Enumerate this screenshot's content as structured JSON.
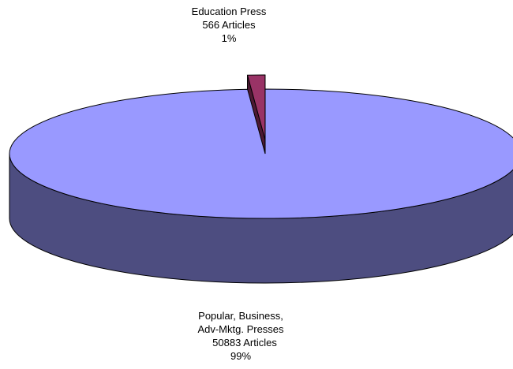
{
  "chart_data": {
    "type": "pie",
    "style": "3d-exploded",
    "slices": [
      {
        "id": "popular",
        "label_lines": [
          "Popular, Business,",
          "Adv-Mktg. Presses"
        ],
        "count_text": "50883 Articles",
        "percent_text": "99%",
        "value": 50883,
        "color": "#9999ff",
        "side_color": "#4d4d80"
      },
      {
        "id": "education",
        "label_lines": [
          "Education Press"
        ],
        "count_text": "566 Articles",
        "percent_text": "1%",
        "value": 566,
        "color": "#993366",
        "side_color": "#4d1933"
      }
    ]
  }
}
